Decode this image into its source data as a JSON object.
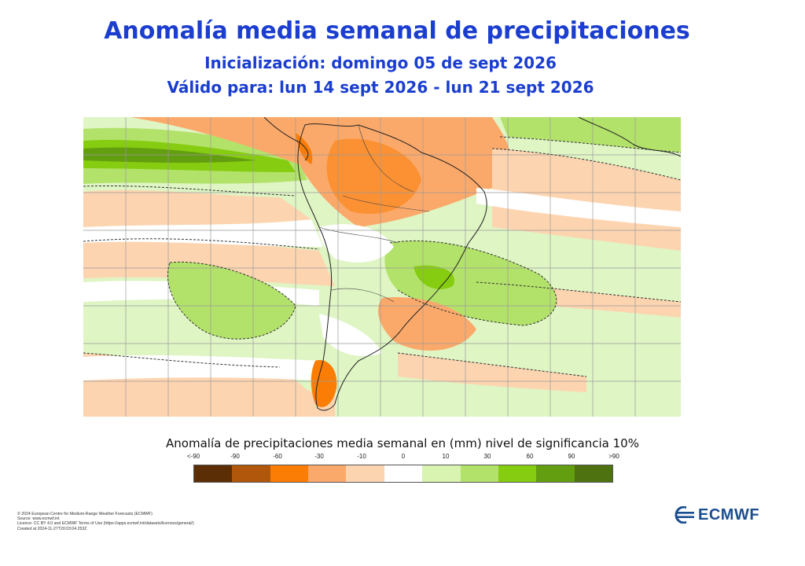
{
  "header": {
    "title": "Anomalía media semanal de precipitaciones",
    "init": "Inicialización: domingo 05 de sept 2026",
    "valid": "Válido para: lun 14 sept 2026 - lun 21 sept 2026"
  },
  "legend": {
    "title": "Anomalía de precipitaciones media semanal en (mm) nivel de significancia 10%",
    "ticks": [
      "<-90",
      "-90",
      "-60",
      "-30",
      "-10",
      "0",
      "10",
      "30",
      "60",
      "90",
      ">90"
    ],
    "colors": [
      "#5c2e05",
      "#b0570b",
      "#fb7d06",
      "#fba96a",
      "#fdd4b0",
      "#ffffff",
      "#d9f3b0",
      "#b2e26a",
      "#86cc10",
      "#639d10",
      "#4f7210"
    ]
  },
  "credits": {
    "line1": "© 2024 European Centre for Medium-Range Weather Forecasts (ECMWF)",
    "line2": "Source: www.ecmwf.int",
    "line3": "Licence: CC BY 4.0 and ECMWF Terms of Use (https://apps.ecmwf.int/datasets/licences/general/)",
    "line4": "Created at 2024-11-27T20:03:04.253Z"
  },
  "logo": {
    "text": "ECMWF",
    "color": "#1b4e8f"
  },
  "map": {
    "region": "South America"
  }
}
